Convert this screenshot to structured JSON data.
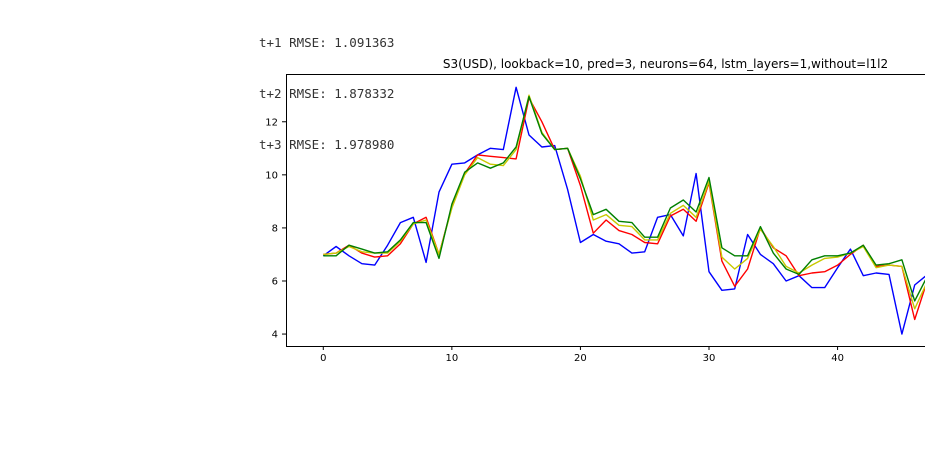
{
  "output": {
    "lines": [
      "t+1 RMSE: 1.091363",
      "t+2 RMSE: 1.878332",
      "t+3 RMSE: 1.978980"
    ]
  },
  "chart_data": {
    "type": "line",
    "title": "S3(USD), lookback=10, pred=3, neurons=64, lstm_layers=1,without=l1l2",
    "xlabel": "",
    "ylabel": "",
    "xlim": [
      -2.9,
      46.8
    ],
    "ylim": [
      3.55,
      13.8
    ],
    "xticks": [
      0,
      10,
      20,
      30,
      40
    ],
    "yticks": [
      4,
      6,
      8,
      10,
      12
    ],
    "grid": false,
    "legend": "none",
    "x": [
      0,
      1,
      2,
      3,
      4,
      5,
      6,
      7,
      8,
      9,
      10,
      11,
      12,
      13,
      14,
      15,
      16,
      17,
      18,
      19,
      20,
      21,
      22,
      23,
      24,
      25,
      26,
      27,
      28,
      29,
      30,
      31,
      32,
      33,
      34,
      35,
      36,
      37,
      38,
      39,
      40,
      41,
      42,
      43,
      44,
      45,
      46,
      47
    ],
    "series": [
      {
        "color": "#0000ff",
        "values": [
          6.95,
          7.3,
          6.95,
          6.65,
          6.6,
          7.35,
          8.2,
          8.4,
          6.7,
          9.35,
          10.4,
          10.45,
          10.75,
          11.0,
          10.95,
          13.3,
          11.5,
          11.05,
          11.1,
          9.45,
          7.45,
          7.75,
          7.5,
          7.4,
          7.05,
          7.1,
          8.4,
          8.5,
          7.7,
          10.05,
          6.35,
          5.65,
          5.7,
          7.75,
          7.0,
          6.65,
          6.0,
          6.2,
          5.75,
          5.75,
          6.5,
          7.2,
          6.2,
          6.3,
          6.25,
          4.0,
          5.85,
          6.25
        ]
      },
      {
        "color": "#ff0000",
        "values": [
          7.0,
          7.05,
          7.35,
          7.05,
          6.9,
          6.95,
          7.4,
          8.15,
          8.4,
          7.0,
          8.8,
          10.05,
          10.75,
          10.7,
          10.65,
          10.6,
          12.9,
          12.0,
          10.95,
          11.0,
          9.6,
          7.8,
          8.3,
          7.9,
          7.75,
          7.45,
          7.4,
          8.45,
          8.7,
          8.25,
          9.7,
          6.75,
          5.8,
          6.45,
          8.0,
          7.25,
          6.95,
          6.2,
          6.3,
          6.35,
          6.6,
          7.0,
          7.35,
          6.55,
          6.6,
          6.55,
          4.55,
          6.05
        ]
      },
      {
        "color": "#c8c800",
        "values": [
          7.0,
          7.05,
          7.3,
          7.1,
          7.05,
          7.05,
          7.5,
          8.15,
          8.3,
          7.0,
          8.75,
          10.0,
          10.65,
          10.4,
          10.35,
          10.95,
          13.0,
          11.6,
          10.95,
          11.0,
          9.95,
          8.3,
          8.5,
          8.1,
          8.05,
          7.55,
          7.55,
          8.55,
          8.85,
          8.4,
          9.75,
          6.9,
          6.45,
          6.85,
          7.95,
          7.3,
          6.55,
          6.3,
          6.6,
          6.85,
          6.9,
          7.05,
          7.3,
          6.5,
          6.6,
          6.55,
          4.95,
          6.0
        ]
      },
      {
        "color": "#008000",
        "values": [
          6.95,
          6.95,
          7.35,
          7.2,
          7.05,
          7.1,
          7.55,
          8.2,
          8.2,
          6.85,
          8.9,
          10.1,
          10.45,
          10.25,
          10.45,
          11.05,
          12.95,
          11.55,
          10.95,
          11.0,
          9.85,
          8.5,
          8.7,
          8.25,
          8.2,
          7.65,
          7.65,
          8.75,
          9.05,
          8.6,
          9.9,
          7.25,
          6.95,
          6.95,
          8.05,
          7.05,
          6.45,
          6.25,
          6.8,
          6.95,
          6.95,
          7.05,
          7.35,
          6.6,
          6.65,
          6.8,
          5.25,
          6.2
        ]
      }
    ]
  }
}
